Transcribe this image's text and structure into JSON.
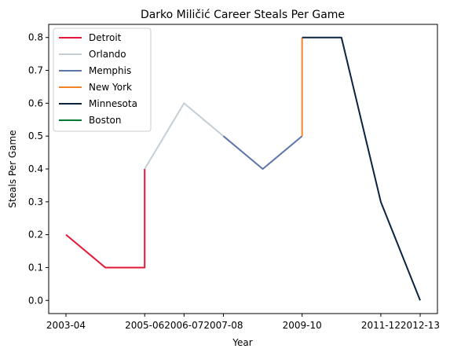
{
  "chart_data": {
    "type": "line",
    "title": "Darko Miličić Career Steals Per Game",
    "xlabel": "Year",
    "ylabel": "Steals Per Game",
    "x_categories": [
      "2003-04",
      "2004-05",
      "2005-06",
      "2005-06",
      "2006-07",
      "2007-08",
      "2008-09",
      "2009-10",
      "2009-10",
      "2010-11",
      "2011-12",
      "2012-13"
    ],
    "x_tick_labels": [
      "2003-04",
      "2005-06",
      "2006-07",
      "2007-08",
      "2009-10",
      "2011-12",
      "2012-13"
    ],
    "ylim": [
      -0.04,
      0.84
    ],
    "y_ticks": [
      0.0,
      0.1,
      0.2,
      0.3,
      0.4,
      0.5,
      0.6,
      0.7,
      0.8
    ],
    "y_tick_labels": [
      "0.0",
      "0.1",
      "0.2",
      "0.3",
      "0.4",
      "0.5",
      "0.6",
      "0.7",
      "0.8"
    ],
    "grid": false,
    "legend_position": "top-left",
    "series": [
      {
        "name": "Detroit",
        "color": "#E31837",
        "points": [
          {
            "x": "2003-04",
            "y": 0.2
          },
          {
            "x": "2004-05",
            "y": 0.1
          },
          {
            "x": "2005-06",
            "y": 0.1
          },
          {
            "x": "2005-06",
            "y": 0.4
          }
        ]
      },
      {
        "name": "Orlando",
        "color": "#C4CED4",
        "points": [
          {
            "x": "2005-06",
            "y": 0.4
          },
          {
            "x": "2006-07",
            "y": 0.6
          },
          {
            "x": "2007-08",
            "y": 0.5
          }
        ]
      },
      {
        "name": "Memphis",
        "color": "#5D76A9",
        "points": [
          {
            "x": "2007-08",
            "y": 0.5
          },
          {
            "x": "2008-09",
            "y": 0.4
          },
          {
            "x": "2009-10",
            "y": 0.5
          }
        ]
      },
      {
        "name": "New York",
        "color": "#F58426",
        "points": [
          {
            "x": "2009-10",
            "y": 0.5
          },
          {
            "x": "2009-10",
            "y": 0.8
          }
        ]
      },
      {
        "name": "Minnesota",
        "color": "#0C2340",
        "points": [
          {
            "x": "2009-10",
            "y": 0.8
          },
          {
            "x": "2010-11",
            "y": 0.8
          },
          {
            "x": "2011-12",
            "y": 0.3
          },
          {
            "x": "2012-13",
            "y": 0.0
          }
        ]
      },
      {
        "name": "Boston",
        "color": "#007A33",
        "points": []
      }
    ]
  }
}
